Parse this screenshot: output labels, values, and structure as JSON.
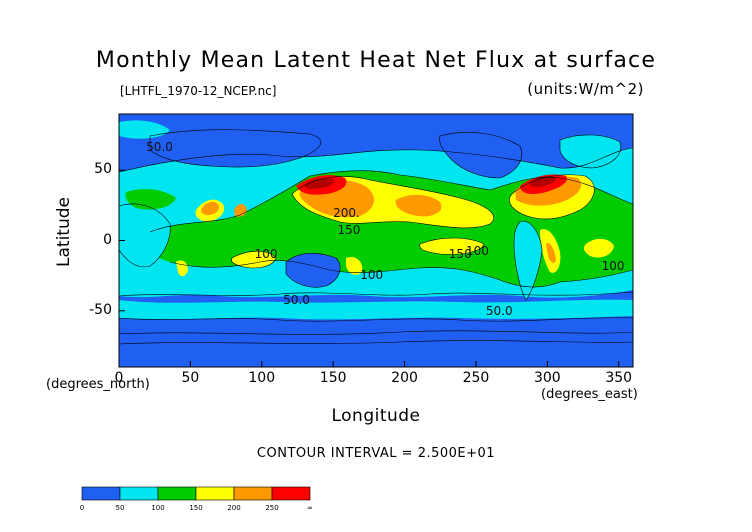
{
  "title": "Monthly Mean Latent Heat Net Flux at surface",
  "filename": "[LHTFL_1970-12_NCEP.nc]",
  "units": "(units:W/m^2)",
  "axes": {
    "xlabel": "Longitude",
    "ylabel": "Latitude",
    "x_unit": "(degrees_east)",
    "y_unit": "(degrees_north)",
    "xlim": [
      0,
      360
    ],
    "ylim": [
      -90,
      90
    ],
    "xticks": [
      "0",
      "50",
      "100",
      "150",
      "200",
      "250",
      "300",
      "350"
    ],
    "yticks": [
      "50",
      "0",
      "-50"
    ]
  },
  "contour_interval": "CONTOUR INTERVAL = 2.500E+01",
  "colorbar": {
    "labels": [
      "0",
      "50",
      "100",
      "150",
      "200",
      "250",
      "∞"
    ],
    "colors": [
      "#1f5ff2",
      "#00e5f0",
      "#00cc00",
      "#ffff00",
      "#ff9900",
      "#ff0000"
    ]
  },
  "contour_labels": [
    {
      "text": "50.0",
      "lon": 26,
      "lat": 66
    },
    {
      "text": "200.",
      "lon": 157,
      "lat": 19
    },
    {
      "text": "150",
      "lon": 160,
      "lat": 7
    },
    {
      "text": "100",
      "lon": 102,
      "lat": -10
    },
    {
      "text": "100",
      "lon": 176,
      "lat": -25
    },
    {
      "text": "150",
      "lon": 238,
      "lat": -10
    },
    {
      "text": "100",
      "lon": 250,
      "lat": -8
    },
    {
      "text": "100",
      "lon": 345,
      "lat": -19
    },
    {
      "text": "50.0",
      "lon": 122,
      "lat": -43
    },
    {
      "text": "50.0",
      "lon": 264,
      "lat": -51
    }
  ],
  "colors": {
    "ocean_low": "#1f5ff2",
    "ocean_mid": "#00e5f0",
    "land_green": "#00cc00",
    "warm_yellow": "#ffff00",
    "orange": "#ff9900",
    "red": "#ff0000",
    "dark_red": "#b40000"
  }
}
